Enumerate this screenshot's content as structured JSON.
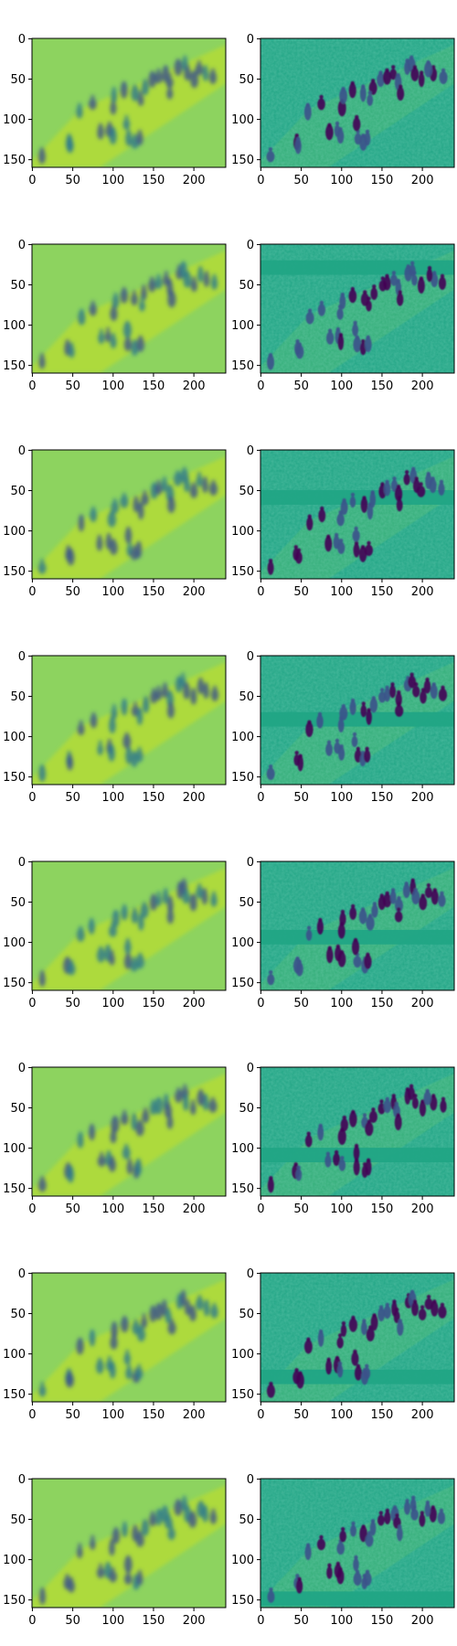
{
  "figure": {
    "rows": 8,
    "cols": 2,
    "colormap": "viridis",
    "colors": {
      "background": "#ffffff",
      "axis": "#000000",
      "left_base": "#8dd35f",
      "left_light": "#c8e020",
      "left_dark": "#2a788e",
      "left_deep": "#3b528b",
      "right_base": "#21a585",
      "right_light": "#7ad151",
      "right_dark": "#3b528b",
      "right_deep": "#440154"
    },
    "x_ticks": [
      "0",
      "50",
      "100",
      "150",
      "200"
    ],
    "y_ticks": [
      "0",
      "50",
      "100",
      "150"
    ],
    "x_tick_values": [
      0,
      50,
      100,
      150,
      200
    ],
    "y_tick_values": [
      0,
      50,
      100,
      150
    ],
    "image_size": {
      "width": 240,
      "height": 160
    },
    "panels": [
      {
        "row": 0,
        "col": 0,
        "style": "smooth"
      },
      {
        "row": 0,
        "col": 1,
        "style": "detailed",
        "band_y": null
      },
      {
        "row": 1,
        "col": 0,
        "style": "smooth"
      },
      {
        "row": 1,
        "col": 1,
        "style": "detailed",
        "band_y": 20
      },
      {
        "row": 2,
        "col": 0,
        "style": "smooth"
      },
      {
        "row": 2,
        "col": 1,
        "style": "detailed",
        "band_y": 50
      },
      {
        "row": 3,
        "col": 0,
        "style": "smooth"
      },
      {
        "row": 3,
        "col": 1,
        "style": "detailed",
        "band_y": 70
      },
      {
        "row": 4,
        "col": 0,
        "style": "smooth"
      },
      {
        "row": 4,
        "col": 1,
        "style": "detailed",
        "band_y": 85
      },
      {
        "row": 5,
        "col": 0,
        "style": "smooth"
      },
      {
        "row": 5,
        "col": 1,
        "style": "detailed",
        "band_y": 100
      },
      {
        "row": 6,
        "col": 0,
        "style": "smooth"
      },
      {
        "row": 6,
        "col": 1,
        "style": "detailed",
        "band_y": 120
      },
      {
        "row": 7,
        "col": 0,
        "style": "smooth"
      },
      {
        "row": 7,
        "col": 1,
        "style": "detailed",
        "band_y": 140
      }
    ]
  }
}
